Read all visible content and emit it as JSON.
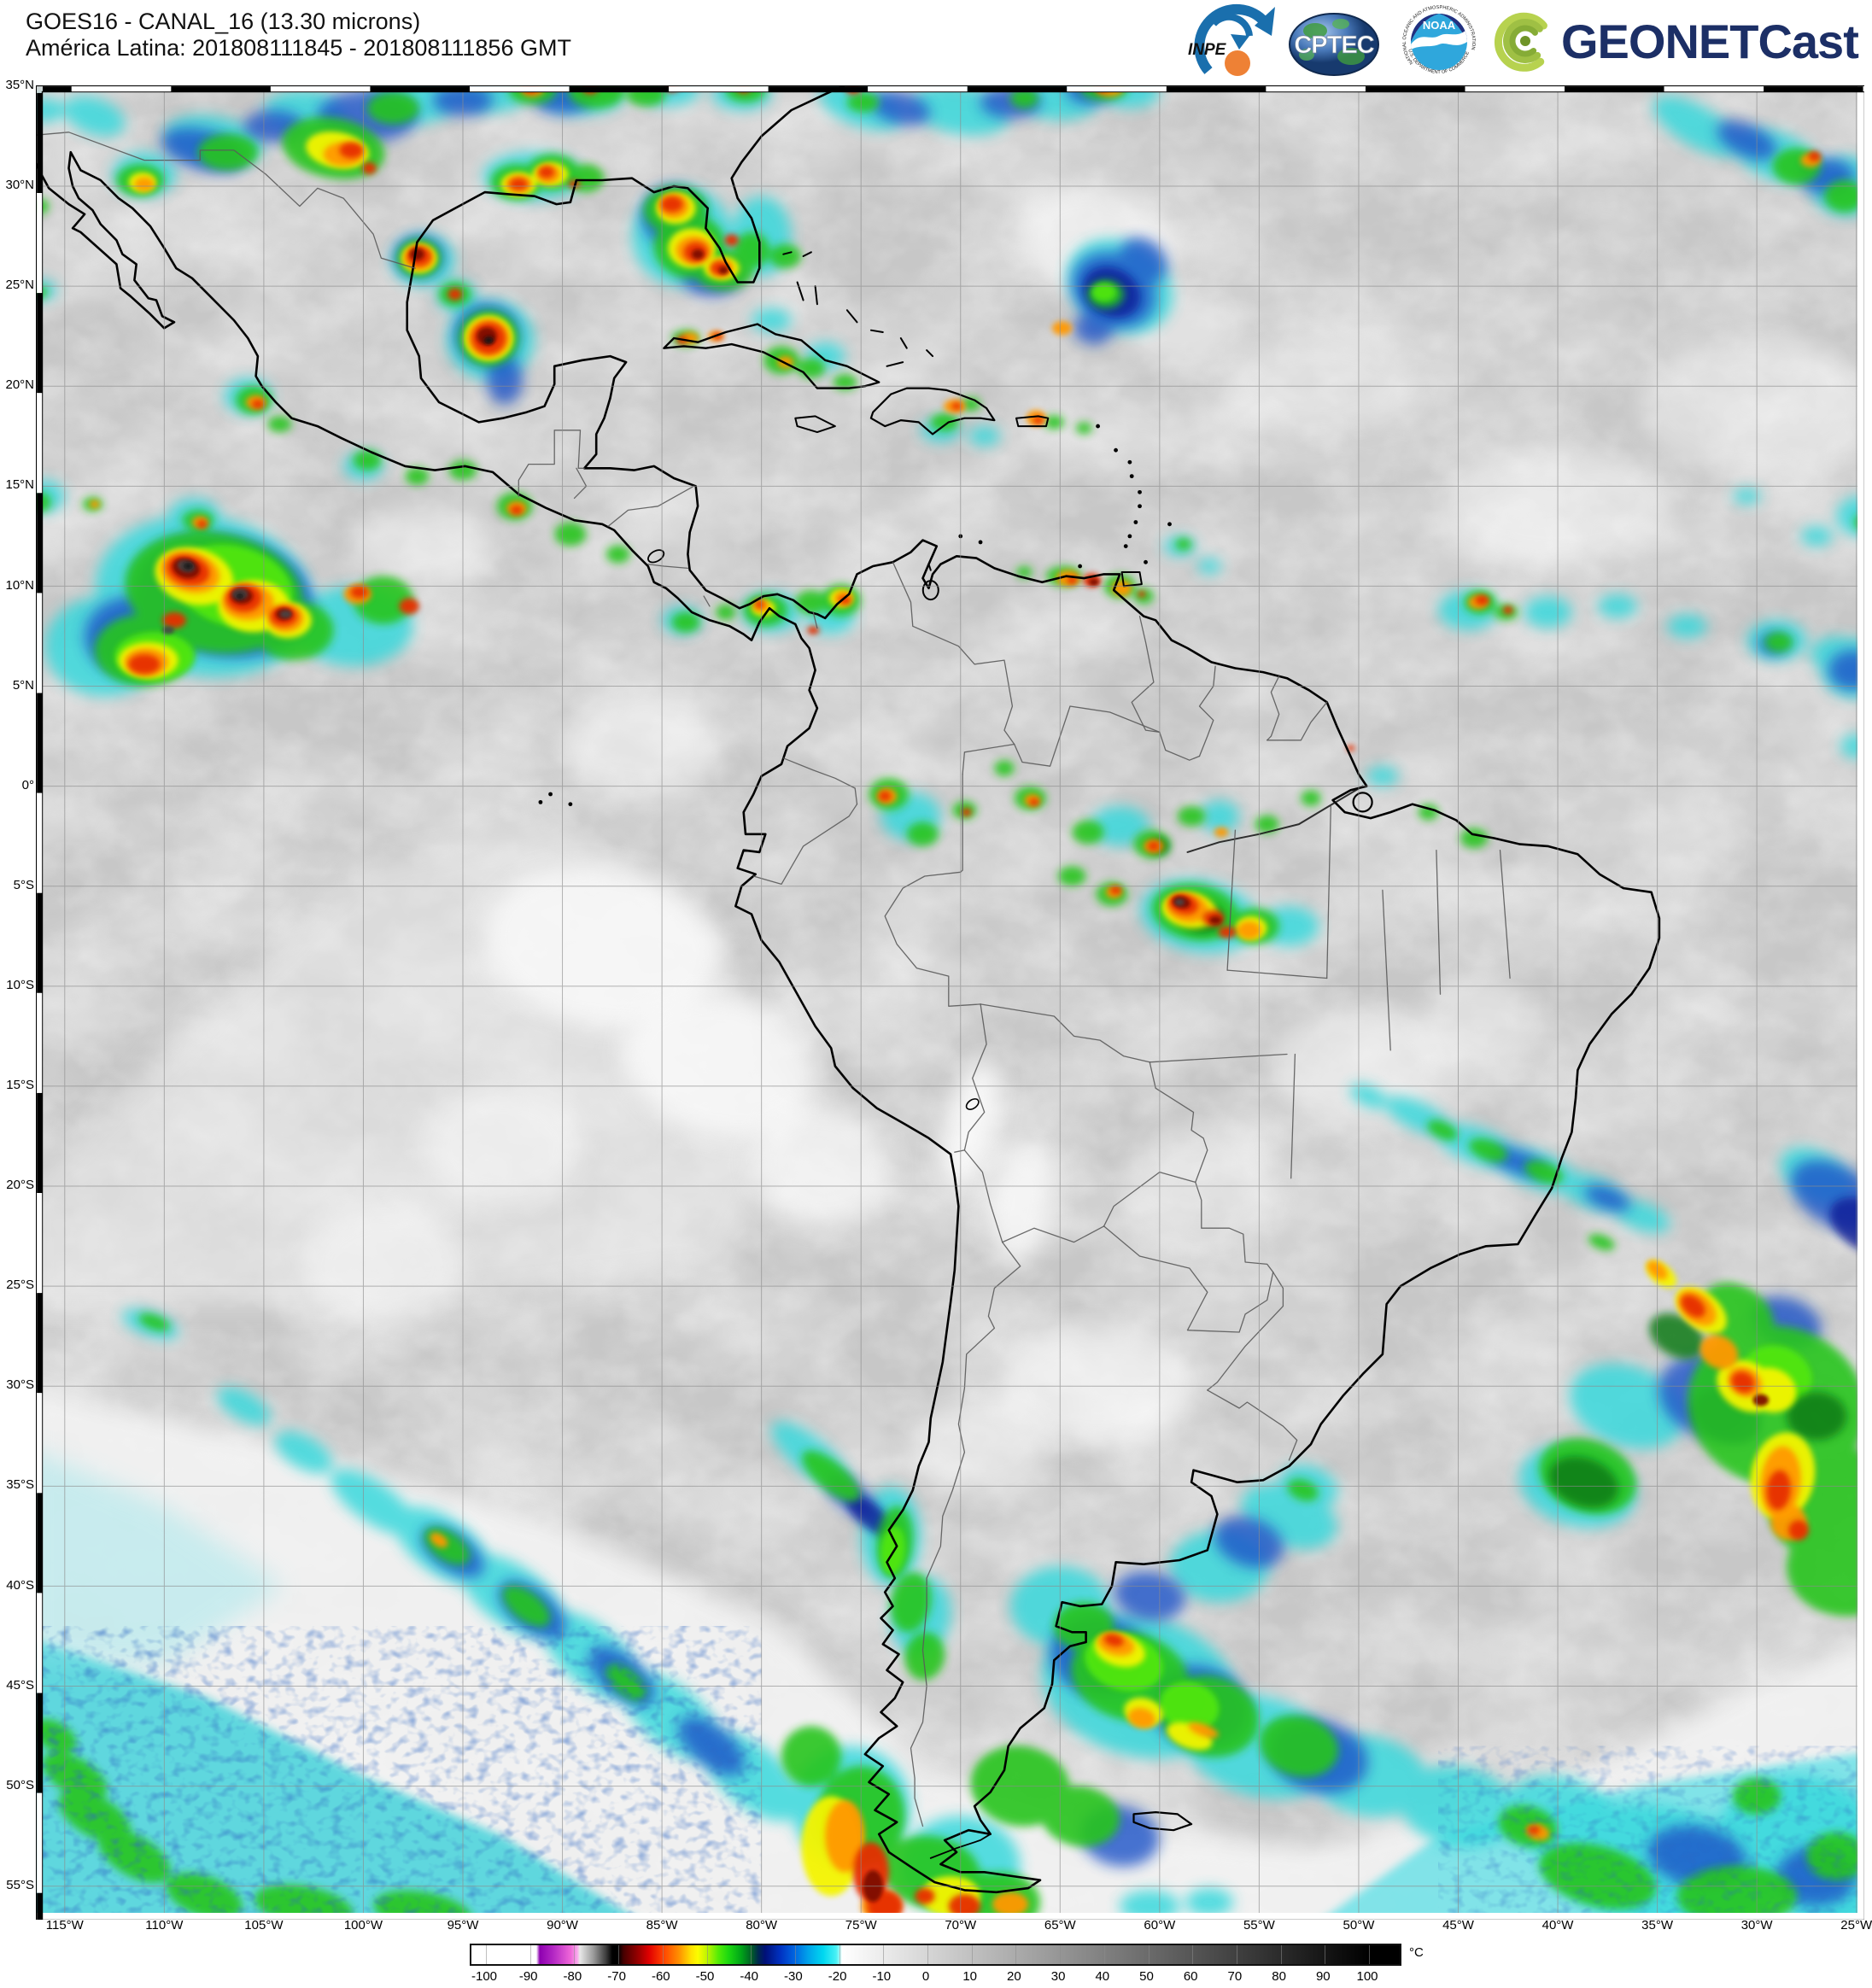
{
  "header": {
    "line1": "GOES16 - CANAL_16 (13.30 microns)",
    "line2": "América Latina: 201808111845 - 201808111856 GMT"
  },
  "logos": {
    "inpe": "INPE",
    "cptec": "CPTEC",
    "noaa": "NOAA",
    "noaa_ring_top": "NATIONAL OCEANIC AND ATMOSPHERIC ADMINISTRATION",
    "noaa_ring_bottom": "U.S. DEPARTMENT OF COMMERCE",
    "geonetcast": "GEONETCast"
  },
  "map": {
    "lat_labels": [
      "35°N",
      "30°N",
      "25°N",
      "20°N",
      "15°N",
      "10°N",
      "5°N",
      "0°",
      "5°S",
      "10°S",
      "15°S",
      "20°S",
      "25°S",
      "30°S",
      "35°S",
      "40°S",
      "45°S",
      "50°S",
      "55°S"
    ],
    "lon_labels": [
      "115°W",
      "110°W",
      "105°W",
      "100°W",
      "95°W",
      "90°W",
      "85°W",
      "80°W",
      "75°W",
      "70°W",
      "65°W",
      "60°W",
      "55°W",
      "50°W",
      "45°W",
      "40°W",
      "35°W",
      "30°W",
      "25°W"
    ]
  },
  "colorbar": {
    "ticks": [
      "-100",
      "-90",
      "-80",
      "-70",
      "-60",
      "-50",
      "-40",
      "-30",
      "-20",
      "-10",
      "0",
      "10",
      "20",
      "30",
      "40",
      "50",
      "60",
      "70",
      "80",
      "90",
      "100"
    ],
    "unit": "°C"
  }
}
